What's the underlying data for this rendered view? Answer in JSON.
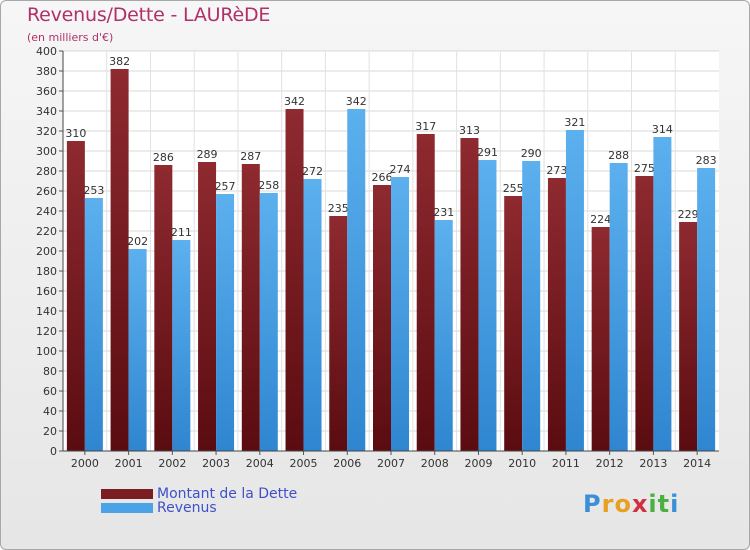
{
  "header": {
    "title": "Revenus/Dette - LAURèDE",
    "subtitle": "(en milliers d'€)"
  },
  "chart_data": {
    "type": "bar",
    "categories": [
      "2000",
      "2001",
      "2002",
      "2003",
      "2004",
      "2005",
      "2006",
      "2007",
      "2008",
      "2009",
      "2010",
      "2011",
      "2012",
      "2013",
      "2014"
    ],
    "series": [
      {
        "name": "Montant de la Dette",
        "color": "#7a1e24",
        "values": [
          310,
          382,
          286,
          289,
          287,
          342,
          235,
          266,
          317,
          313,
          255,
          273,
          224,
          275,
          229
        ]
      },
      {
        "name": "Revenus",
        "color": "#4aa3e6",
        "values": [
          253,
          202,
          211,
          257,
          258,
          272,
          342,
          274,
          231,
          291,
          290,
          321,
          288,
          314,
          283
        ]
      }
    ],
    "ylim": [
      0,
      400
    ],
    "ytick_step": 20,
    "grid": true
  },
  "legend": {
    "items": [
      {
        "label": "Montant de la Dette",
        "color": "#7a1e24"
      },
      {
        "label": "Revenus",
        "color": "#4aa3e6"
      }
    ]
  },
  "logo": {
    "letters": [
      "P",
      "r",
      "o",
      "x",
      "i",
      "t",
      "i"
    ],
    "colors": [
      "#3a8fd8",
      "#e8a020",
      "#e8a020",
      "#d03040",
      "#4ab040",
      "#4ab040",
      "#3a8fd8"
    ]
  }
}
